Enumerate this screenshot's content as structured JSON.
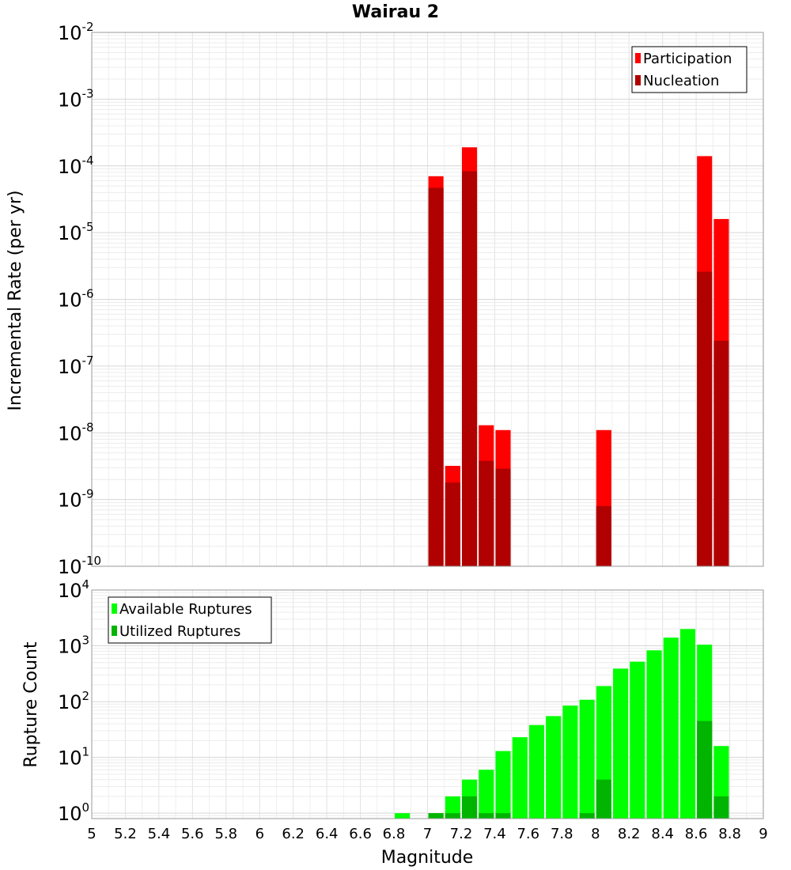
{
  "chart_data": [
    {
      "type": "bar",
      "title": "Wairau 2",
      "xlabel": "",
      "ylabel": "Incremental Rate (per yr)",
      "yscale": "log",
      "xlim": [
        5,
        9
      ],
      "ylim": [
        1e-10,
        0.01
      ],
      "y_ticks": [
        {
          "base": "10",
          "exp": "-10"
        },
        {
          "base": "10",
          "exp": "-9"
        },
        {
          "base": "10",
          "exp": "-8"
        },
        {
          "base": "10",
          "exp": "-7"
        },
        {
          "base": "10",
          "exp": "-6"
        },
        {
          "base": "10",
          "exp": "-5"
        },
        {
          "base": "10",
          "exp": "-4"
        },
        {
          "base": "10",
          "exp": "-3"
        },
        {
          "base": "10",
          "exp": "-2"
        }
      ],
      "grid": true,
      "legend_position": "top-right",
      "bar_width": 0.09,
      "series": [
        {
          "name": "Participation",
          "color": "#ff0000",
          "x": [
            7.05,
            7.15,
            7.25,
            7.35,
            7.45,
            8.05,
            8.65,
            8.75
          ],
          "values": [
            7e-05,
            3.2e-09,
            0.00019,
            1.3e-08,
            1.1e-08,
            1.1e-08,
            0.00014,
            1.6e-05
          ]
        },
        {
          "name": "Nucleation",
          "color": "#b00000",
          "x": [
            7.05,
            7.15,
            7.25,
            7.35,
            7.45,
            8.05,
            8.65,
            8.75
          ],
          "values": [
            4.7e-05,
            1.8e-09,
            8.3e-05,
            3.8e-09,
            2.9e-09,
            8e-10,
            2.6e-06,
            2.4e-07
          ]
        }
      ]
    },
    {
      "type": "bar",
      "title": "",
      "xlabel": "Magnitude",
      "ylabel": "Rupture Count",
      "yscale": "log",
      "xlim": [
        5,
        9
      ],
      "ylim": [
        0.8,
        10000
      ],
      "y_ticks": [
        {
          "base": "10",
          "exp": "0"
        },
        {
          "base": "10",
          "exp": "1"
        },
        {
          "base": "10",
          "exp": "2"
        },
        {
          "base": "10",
          "exp": "3"
        },
        {
          "base": "10",
          "exp": "4"
        }
      ],
      "x_ticks": [
        "5",
        "5.2",
        "5.4",
        "5.6",
        "5.8",
        "6",
        "6.2",
        "6.4",
        "6.6",
        "6.8",
        "7",
        "7.2",
        "7.4",
        "7.6",
        "7.8",
        "8",
        "8.2",
        "8.4",
        "8.6",
        "8.8",
        "9"
      ],
      "grid": true,
      "legend_position": "top-left",
      "bar_width": 0.09,
      "series": [
        {
          "name": "Available Ruptures",
          "color": "#00ff00",
          "x": [
            6.85,
            7.05,
            7.15,
            7.25,
            7.35,
            7.45,
            7.55,
            7.65,
            7.75,
            7.85,
            7.95,
            8.05,
            8.15,
            8.25,
            8.35,
            8.45,
            8.55,
            8.65,
            8.75
          ],
          "values": [
            1,
            1,
            2,
            4,
            6,
            13,
            23,
            38,
            55,
            85,
            108,
            190,
            390,
            520,
            830,
            1400,
            2000,
            1050,
            16
          ]
        },
        {
          "name": "Utilized Ruptures",
          "color": "#00b400",
          "x": [
            7.05,
            7.15,
            7.25,
            7.35,
            7.45,
            7.95,
            8.05,
            8.65,
            8.75
          ],
          "values": [
            1,
            1,
            2,
            1,
            1,
            1,
            4,
            45,
            2
          ]
        }
      ]
    }
  ]
}
